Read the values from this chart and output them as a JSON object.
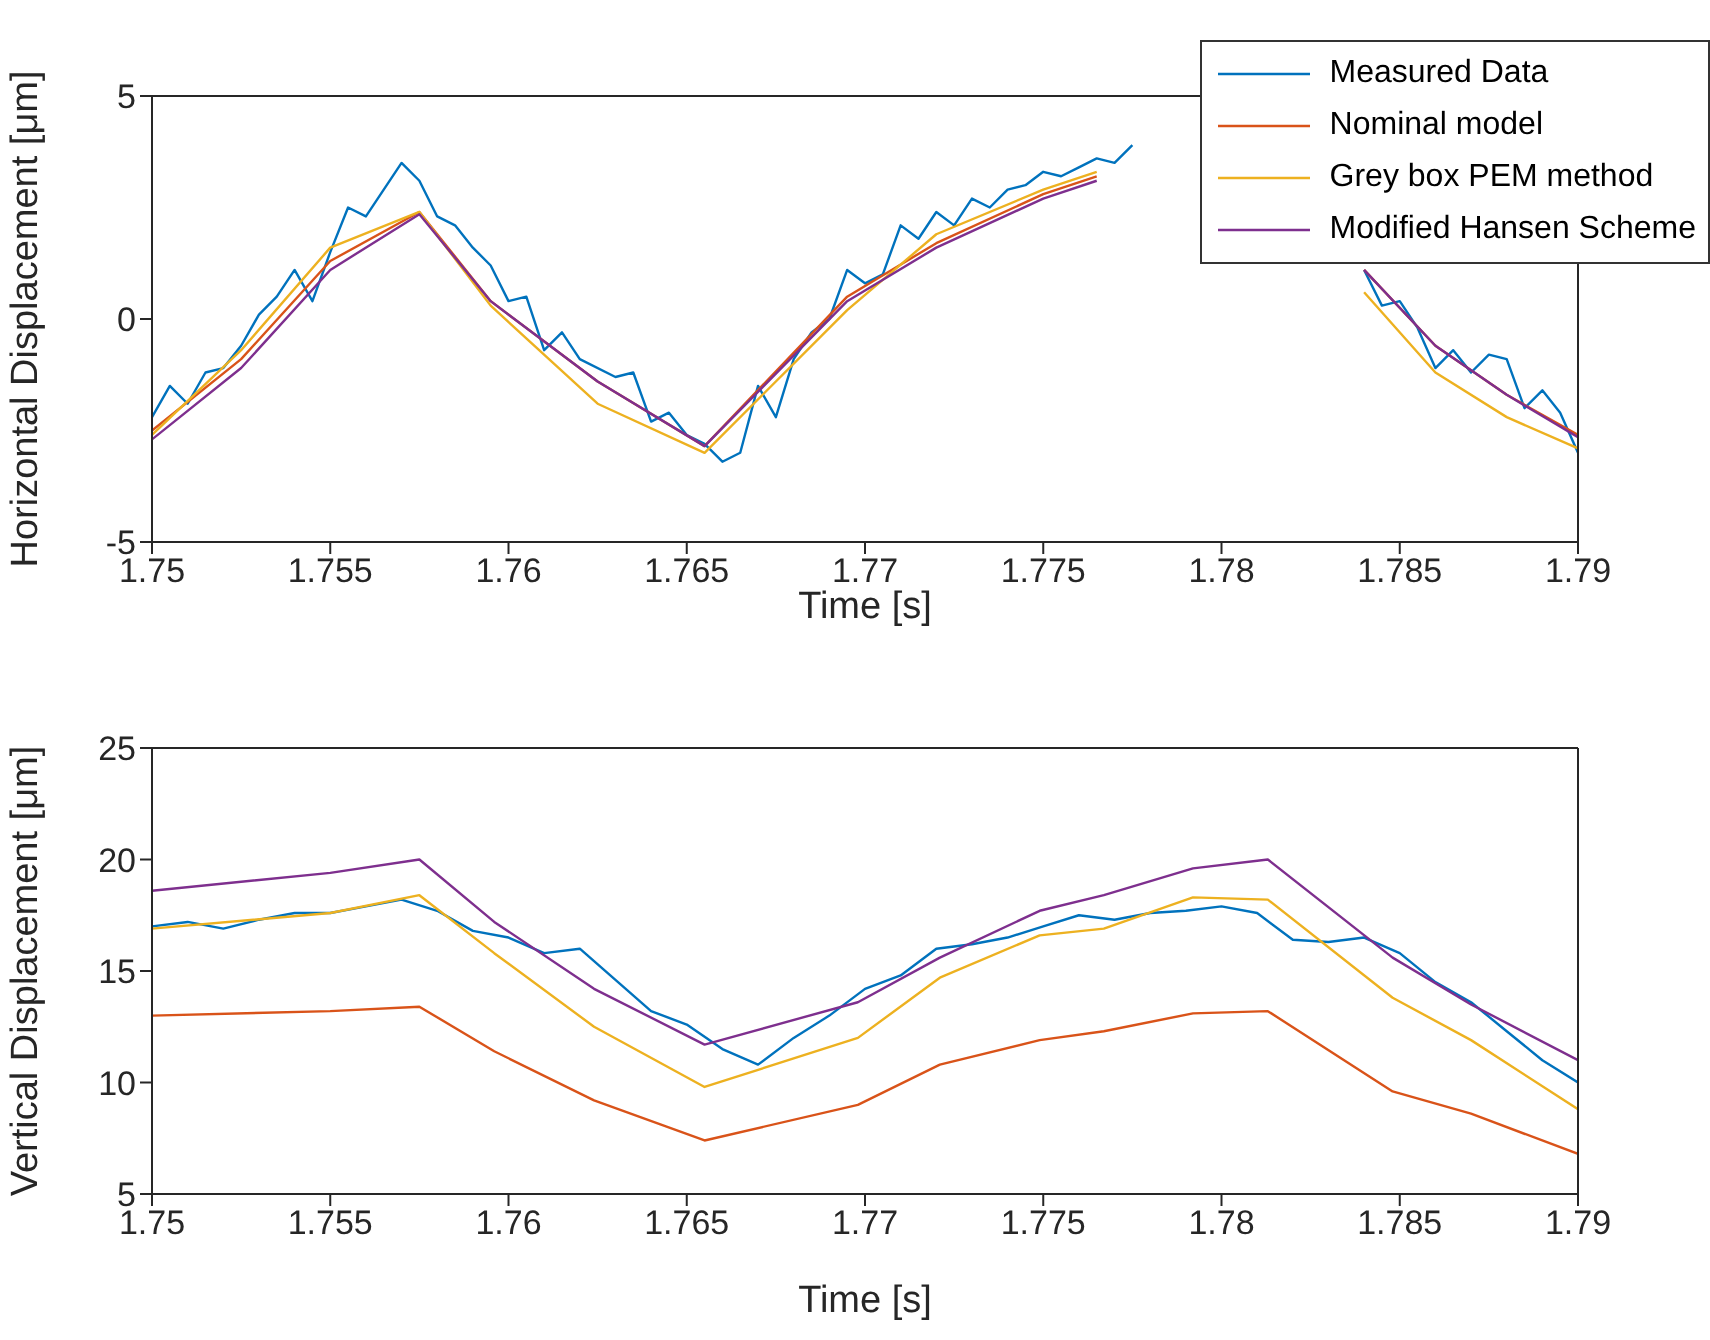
{
  "chart_data": [
    {
      "type": "line",
      "xlabel": "Time [s]",
      "ylabel": "Horizontal Displacement [μm]",
      "xlim": [
        1.75,
        1.79
      ],
      "xticks": [
        1.75,
        1.755,
        1.76,
        1.765,
        1.77,
        1.775,
        1.78,
        1.785,
        1.79
      ],
      "ylim": [
        -5,
        5
      ],
      "yticks": [
        -5,
        0,
        5
      ],
      "legend": "top right",
      "x": [
        1.75,
        1.7525,
        1.755,
        1.7575,
        1.7595,
        1.7625,
        1.7655,
        1.7695,
        1.772,
        1.775,
        1.7765,
        1.779,
        1.7815,
        1.784,
        1.786,
        1.788,
        1.79
      ],
      "series": [
        {
          "name": "Measured Data",
          "color": "#0072bd",
          "x": [
            1.75,
            1.7505,
            1.751,
            1.7515,
            1.752,
            1.7525,
            1.753,
            1.7535,
            1.754,
            1.7545,
            1.755,
            1.7555,
            1.756,
            1.7565,
            1.757,
            1.7575,
            1.758,
            1.7585,
            1.759,
            1.7595,
            1.76,
            1.7605,
            1.761,
            1.7615,
            1.762,
            1.763,
            1.7635,
            1.764,
            1.7645,
            1.765,
            1.7655,
            1.766,
            1.7665,
            1.767,
            1.7675,
            1.768,
            1.7685,
            1.769,
            1.7695,
            1.77,
            1.7705,
            1.771,
            1.7715,
            1.772,
            1.7725,
            1.773,
            1.7735,
            1.774,
            1.7745,
            1.775,
            1.7755,
            1.776,
            1.7765,
            1.777,
            1.7775,
            1.778,
            1.784,
            1.7845,
            1.785,
            1.7855,
            1.786,
            1.7865,
            1.787,
            1.7875,
            1.788,
            1.7885,
            1.789,
            1.7895,
            1.79
          ],
          "values": [
            -2.2,
            -1.5,
            -1.9,
            -1.2,
            -1.1,
            -0.6,
            0.1,
            0.5,
            1.1,
            0.4,
            1.5,
            2.5,
            2.3,
            2.9,
            3.5,
            3.1,
            2.3,
            2.1,
            1.6,
            1.2,
            0.4,
            0.5,
            -0.7,
            -0.3,
            -0.9,
            -1.3,
            -1.2,
            -2.3,
            -2.1,
            -2.6,
            -2.8,
            -3.2,
            -3.0,
            -1.5,
            -2.2,
            -0.9,
            -0.3,
            0.0,
            1.1,
            0.8,
            1.0,
            2.1,
            1.8,
            2.4,
            2.1,
            2.7,
            2.5,
            2.9,
            3.0,
            3.3,
            3.2,
            3.4,
            3.6,
            3.5,
            3.9,
            null,
            1.1,
            0.3,
            0.4,
            -0.2,
            -1.1,
            -0.7,
            -1.2,
            -0.8,
            -0.9,
            -2.0,
            -1.6,
            -2.1,
            -3.0
          ]
        },
        {
          "name": "Nominal model",
          "color": "#d95319",
          "values": [
            -2.5,
            -0.9,
            1.3,
            2.4,
            0.4,
            -1.4,
            -2.85,
            0.5,
            1.7,
            2.8,
            3.2,
            null,
            null,
            1.1,
            -0.6,
            -1.7,
            -2.6
          ]
        },
        {
          "name": "Grey box PEM method",
          "color": "#edb120",
          "values": [
            -2.6,
            -0.7,
            1.6,
            2.4,
            0.3,
            -1.9,
            -3.0,
            0.2,
            1.9,
            2.9,
            3.3,
            null,
            null,
            0.6,
            -1.2,
            -2.2,
            -2.9
          ]
        },
        {
          "name": "Modified Hansen Scheme",
          "color": "#7e2f8e",
          "values": [
            -2.7,
            -1.1,
            1.1,
            2.35,
            0.4,
            -1.4,
            -2.85,
            0.4,
            1.6,
            2.7,
            3.1,
            null,
            null,
            1.1,
            -0.6,
            -1.7,
            -2.65
          ]
        }
      ]
    },
    {
      "type": "line",
      "xlabel": "Time [s]",
      "ylabel": "Vertical Displacement [μm]",
      "xlim": [
        1.75,
        1.79
      ],
      "xticks": [
        1.75,
        1.755,
        1.76,
        1.765,
        1.77,
        1.775,
        1.78,
        1.785,
        1.79
      ],
      "ylim": [
        5,
        25
      ],
      "yticks": [
        5,
        10,
        15,
        20,
        25
      ],
      "x": [
        1.75,
        1.755,
        1.7575,
        1.7596,
        1.7624,
        1.7655,
        1.7698,
        1.7721,
        1.7749,
        1.7767,
        1.7792,
        1.7813,
        1.7848,
        1.787,
        1.79
      ],
      "series": [
        {
          "color": "#0072bd",
          "x": [
            1.75,
            1.751,
            1.752,
            1.753,
            1.754,
            1.755,
            1.756,
            1.757,
            1.758,
            1.759,
            1.76,
            1.761,
            1.762,
            1.763,
            1.764,
            1.765,
            1.766,
            1.767,
            1.768,
            1.769,
            1.77,
            1.771,
            1.772,
            1.773,
            1.774,
            1.775,
            1.776,
            1.777,
            1.778,
            1.779,
            1.78,
            1.781,
            1.782,
            1.783,
            1.784,
            1.785,
            1.786,
            1.787,
            1.788,
            1.789,
            1.79
          ],
          "values": [
            17.0,
            17.2,
            16.9,
            17.3,
            17.6,
            17.6,
            17.9,
            18.2,
            17.7,
            16.8,
            16.5,
            15.8,
            16.0,
            14.6,
            13.2,
            12.6,
            11.5,
            10.8,
            12.0,
            13.0,
            14.2,
            14.8,
            16.0,
            16.2,
            16.5,
            17.0,
            17.5,
            17.3,
            17.6,
            17.7,
            17.9,
            17.6,
            16.4,
            16.3,
            16.5,
            15.8,
            14.5,
            13.6,
            12.3,
            11.0,
            10.0
          ]
        },
        {
          "color": "#d95319",
          "values": [
            13.0,
            13.2,
            13.4,
            11.4,
            9.2,
            7.4,
            9.0,
            10.8,
            11.9,
            12.3,
            13.1,
            13.2,
            9.6,
            8.6,
            6.8
          ]
        },
        {
          "color": "#edb120",
          "values": [
            16.9,
            17.6,
            18.4,
            15.8,
            12.5,
            9.8,
            12.0,
            14.7,
            16.6,
            16.9,
            18.3,
            18.2,
            13.8,
            11.9,
            8.8
          ]
        },
        {
          "color": "#7e2f8e",
          "values": [
            18.6,
            19.4,
            20.0,
            17.2,
            14.2,
            11.7,
            13.6,
            15.6,
            17.7,
            18.4,
            19.6,
            20.0,
            15.6,
            13.5,
            11.0
          ]
        }
      ]
    }
  ]
}
